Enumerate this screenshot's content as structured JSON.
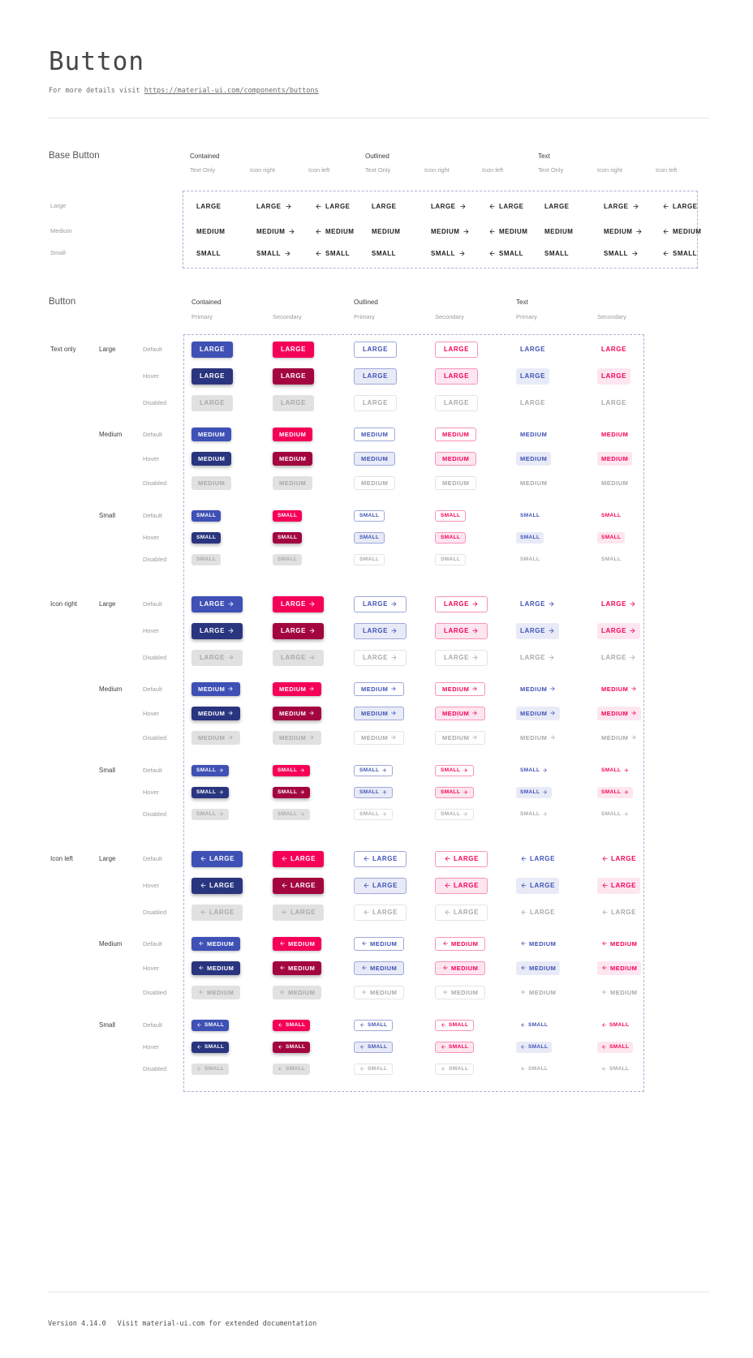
{
  "header": {
    "title": "Button",
    "subtitle_prefix": "For more details visit ",
    "subtitle_link": "https://material-ui.com/components/buttons"
  },
  "footer": {
    "version": "Version 4.14.0",
    "note": "Visit material-ui.com for extended documentation"
  },
  "base_button": {
    "title": "Base Button",
    "variants": [
      "Contained",
      "Outlined",
      "Text"
    ],
    "contents": [
      "Text Only",
      "Icon right",
      "Icon left"
    ],
    "rows": [
      {
        "label": "Large",
        "text": "LARGE"
      },
      {
        "label": "Medium",
        "text": "MEDIUM"
      },
      {
        "label": "Small",
        "text": "SMALL"
      }
    ]
  },
  "button": {
    "title": "Button",
    "variants": [
      "Contained",
      "Outlined",
      "Text"
    ],
    "palettes": [
      "Primary",
      "Secondary"
    ],
    "groups": [
      {
        "label": "Text only",
        "icon": "none"
      },
      {
        "label": "Icon right",
        "icon": "right"
      },
      {
        "label": "Icon left",
        "icon": "left"
      }
    ],
    "sizes": [
      {
        "label": "Large",
        "text": "LARGE"
      },
      {
        "label": "Medium",
        "text": "MEDIUM"
      },
      {
        "label": "Small",
        "text": "SMALL"
      }
    ],
    "states": [
      "Default",
      "Hover",
      "Disabled"
    ]
  },
  "icons": {
    "arrow_right": "arrow-right-icon",
    "arrow_left": "arrow-left-icon"
  },
  "colors": {
    "primary": "#3f51b5",
    "primary_hover": "#2a357f",
    "secondary": "#f50057",
    "secondary_hover": "#a3063f",
    "disabled_bg": "#e1e1e1",
    "disabled_text": "#a9a9a9",
    "outlined_primary_border": "#9fa8da",
    "outlined_secondary_border": "#f894b8",
    "tint_primary": "#e8ebf7",
    "tint_secondary": "#fde6ef",
    "base_text": "#212121",
    "dashed_border": "#a9b1d6",
    "divider": "#e8e8e8"
  }
}
